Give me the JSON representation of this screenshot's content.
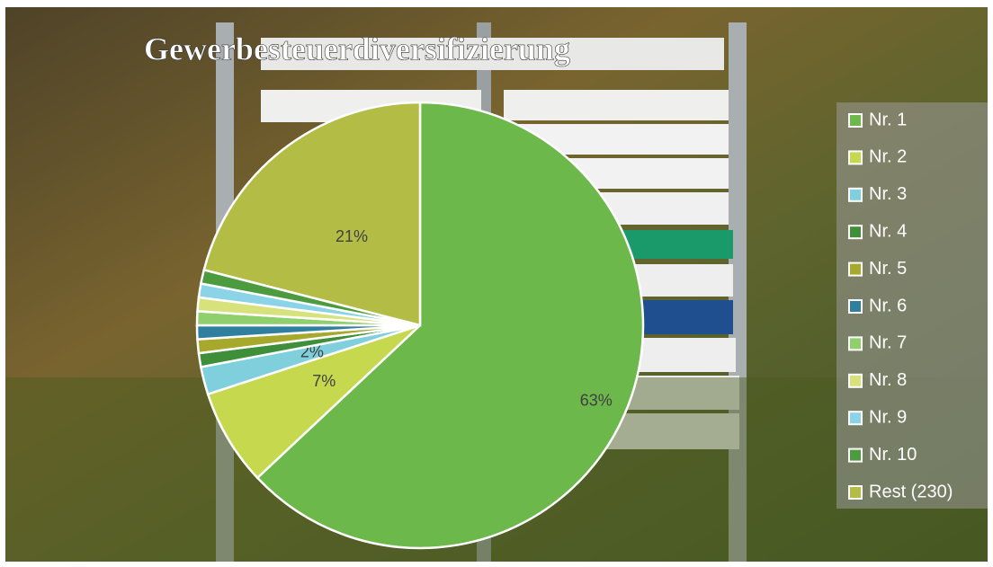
{
  "chart_data": {
    "type": "pie",
    "title": "Gewerbesteuerdiversifizierung",
    "categories": [
      "Nr. 1",
      "Nr. 2",
      "Nr. 3",
      "Nr. 4",
      "Nr. 5",
      "Nr. 6",
      "Nr. 7",
      "Nr. 8",
      "Nr. 9",
      "Nr. 10",
      "Rest (230)"
    ],
    "values": [
      63,
      7,
      2,
      1,
      1,
      1,
      1,
      1,
      1,
      1,
      21
    ],
    "value_labels": [
      "63%",
      "7%",
      "2%",
      null,
      null,
      null,
      null,
      null,
      null,
      null,
      "21%"
    ],
    "colors": [
      "#6cb84a",
      "#c6d84e",
      "#7fd0dc",
      "#3f8f3a",
      "#a7a92c",
      "#2f7f9f",
      "#8fcf6c",
      "#d8e27c",
      "#8bd3e6",
      "#4c9c3f",
      "#b3bd45"
    ],
    "legend": "right"
  }
}
